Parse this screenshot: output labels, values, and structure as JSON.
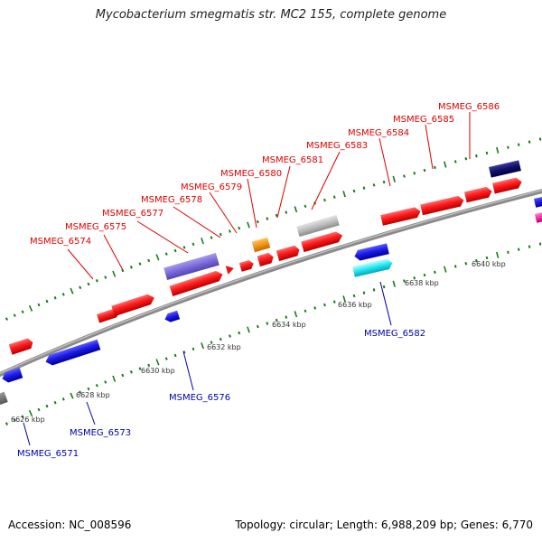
{
  "title": "Mycobacterium smegmatis str. MC2 155, complete genome",
  "footer": {
    "accession": "Accession: NC_008596",
    "summary": "Topology: circular; Length: 6,988,209 bp; Genes: 6,770"
  },
  "colors": {
    "backbone": "#8a8a8a",
    "tick": "#1a7a1a",
    "forward_gene": "#ee1111",
    "reverse_gene": "#1a1ae0",
    "forward_label": "#dd0000",
    "reverse_label": "#0000aa"
  },
  "scale_labels": [
    "6626 kbp",
    "6628 kbp",
    "6630 kbp",
    "6632 kbp",
    "6634 kbp",
    "6636 kbp",
    "6638 kbp",
    "6640 kbp"
  ],
  "gene_labels": {
    "forward": [
      "MSMEG_6574",
      "MSMEG_6575",
      "MSMEG_6577",
      "MSMEG_6578",
      "MSMEG_6579",
      "MSMEG_6580",
      "MSMEG_6581",
      "MSMEG_6583",
      "MSMEG_6584",
      "MSMEG_6585",
      "MSMEG_6586"
    ],
    "reverse": [
      "MSMEG_6571",
      "MSMEG_6573",
      "MSMEG_6576",
      "MSMEG_6582"
    ]
  }
}
